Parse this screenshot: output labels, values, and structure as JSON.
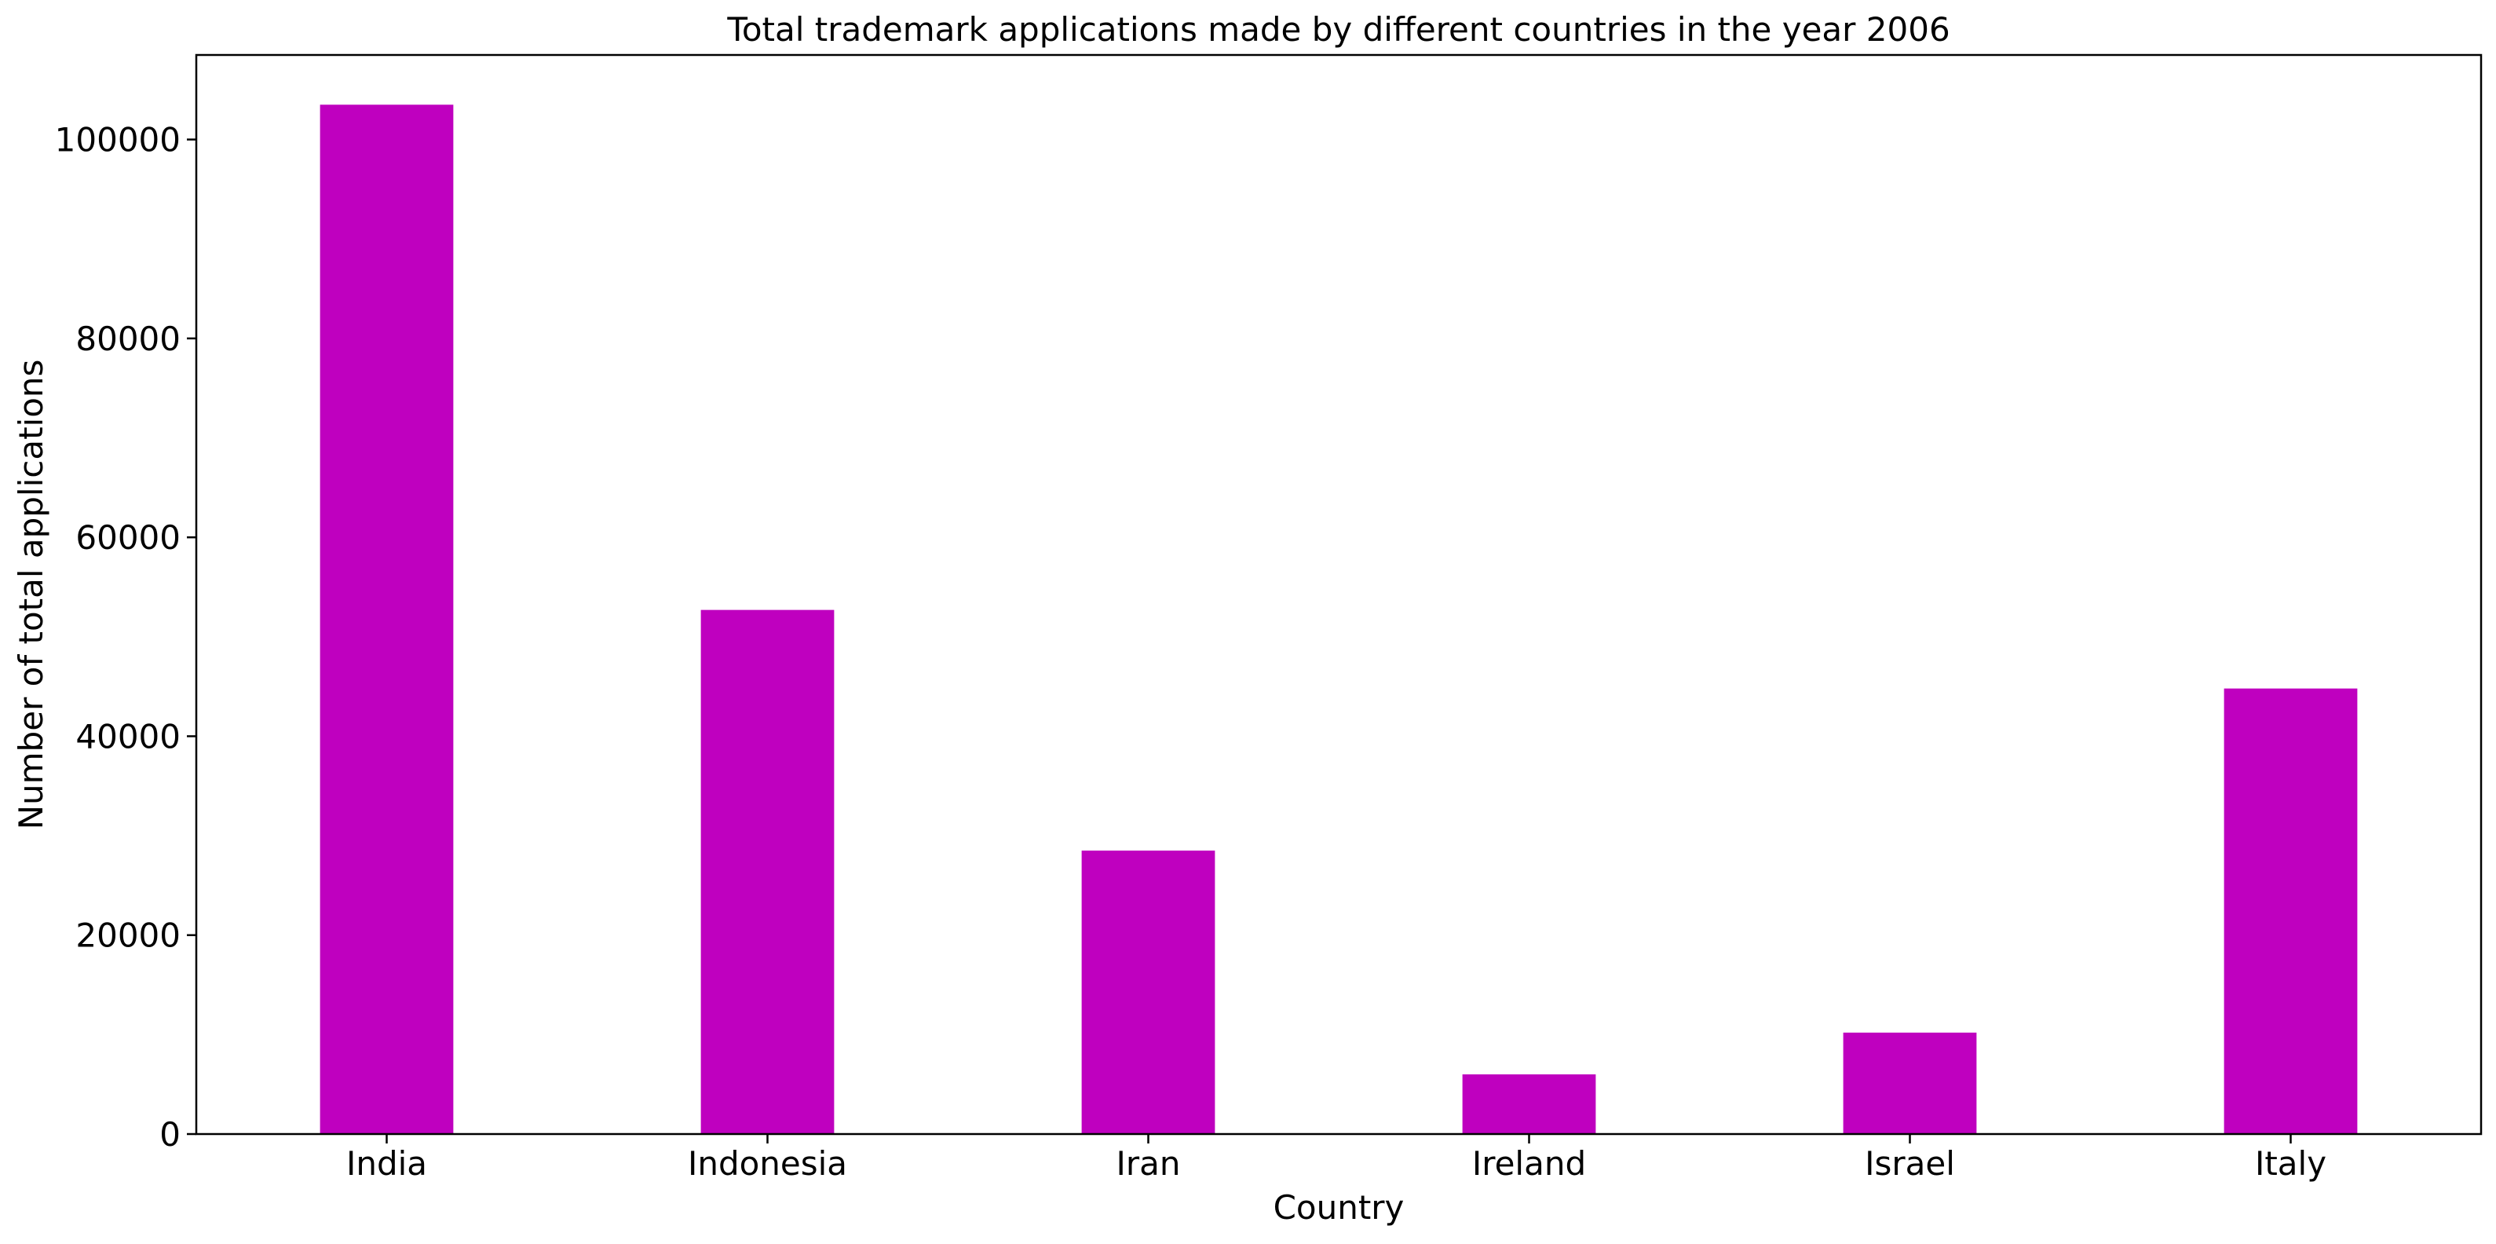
{
  "chart_data": {
    "type": "bar",
    "title": "Total trademark applications made by different countries in the year 2006",
    "xlabel": "Country",
    "ylabel": "Number of total applications",
    "categories": [
      "India",
      "Indonesia",
      "Iran",
      "Ireland",
      "Israel",
      "Italy"
    ],
    "values": [
      103500,
      52700,
      28500,
      6000,
      10200,
      44800
    ],
    "ylim": [
      0,
      108500
    ],
    "yticks": [
      0,
      20000,
      40000,
      60000,
      80000,
      100000
    ],
    "ytick_labels": [
      "0",
      "20000",
      "40000",
      "60000",
      "80000",
      "100000"
    ],
    "bar_color": "#bf00bf",
    "grid": false,
    "legend": "none"
  }
}
